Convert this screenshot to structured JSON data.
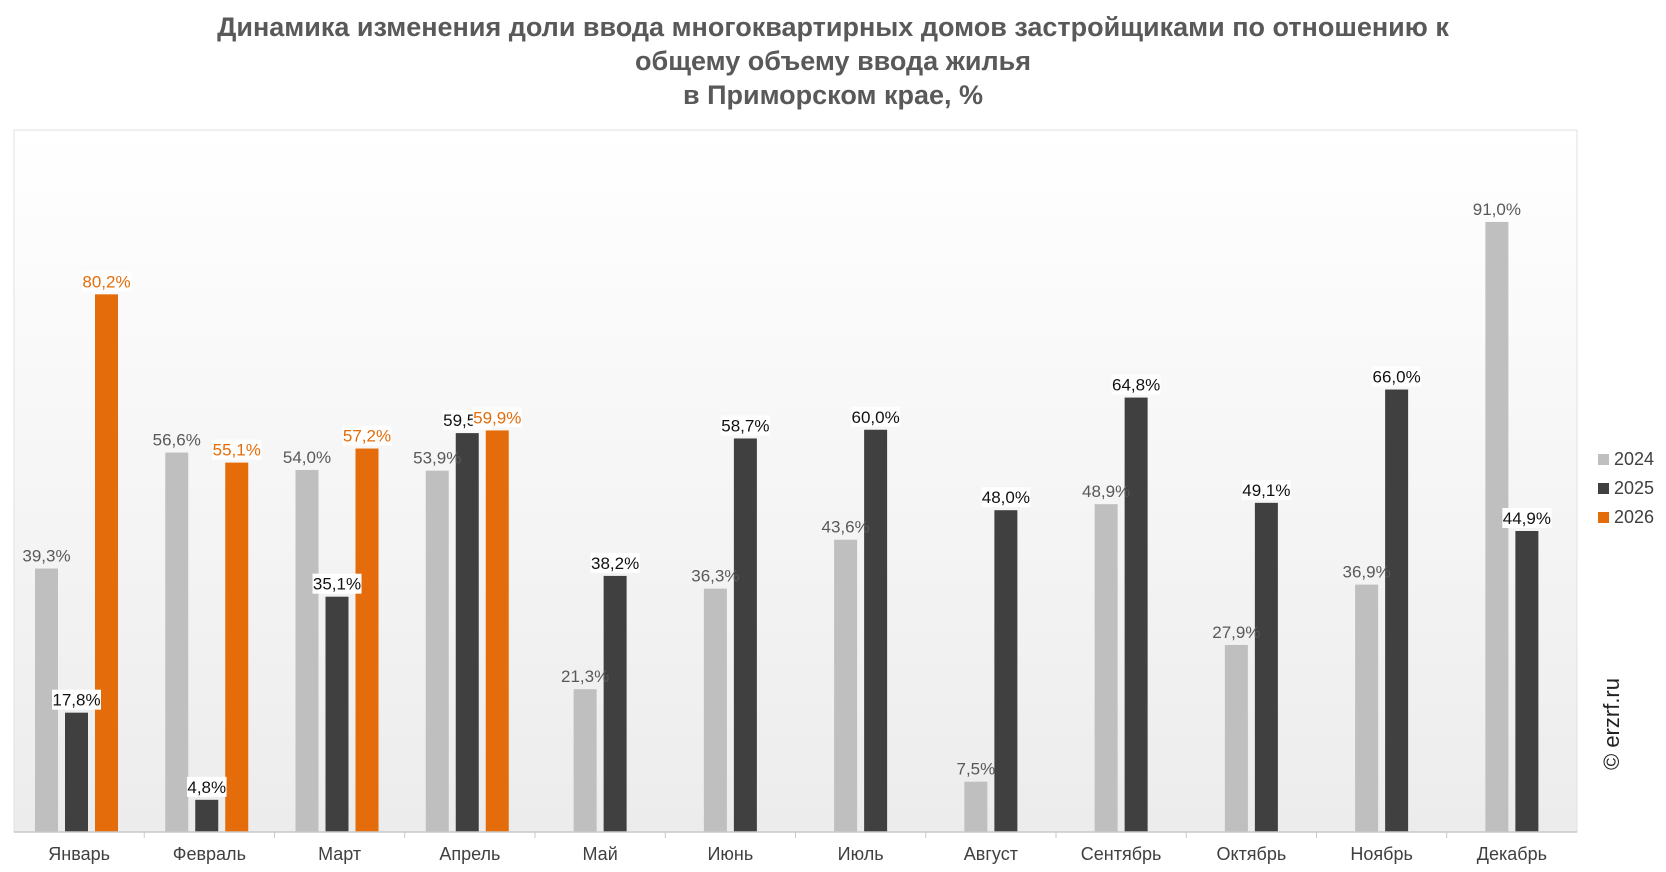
{
  "chart_data": {
    "type": "bar",
    "title_lines": [
      "Динамика изменения доли ввода многоквартирных домов застройщиками по отношению к",
      "общему объему ввода жилья",
      "в Приморском крае, %"
    ],
    "categories": [
      "Январь",
      "Февраль",
      "Март",
      "Апрель",
      "Май",
      "Июнь",
      "Июль",
      "Август",
      "Сентябрь",
      "Октябрь",
      "Ноябрь",
      "Декабрь"
    ],
    "series": [
      {
        "name": "2024",
        "color": "#bfbfbf",
        "label_color": "#595959",
        "values": [
          39.3,
          56.6,
          54.0,
          53.9,
          21.3,
          36.3,
          43.6,
          7.5,
          48.9,
          27.9,
          36.9,
          91.0
        ],
        "labels": [
          "39,3%",
          "56,6%",
          "54,0%",
          "53,9%",
          "21,3%",
          "36,3%",
          "43,6%",
          "7,5%",
          "48,9%",
          "27,9%",
          "36,9%",
          "91,0%"
        ]
      },
      {
        "name": "2025",
        "color": "#404040",
        "label_color": "#111111",
        "values": [
          17.8,
          4.8,
          35.1,
          59.5,
          38.2,
          58.7,
          60.0,
          48.0,
          64.8,
          49.1,
          66.0,
          44.9
        ],
        "labels": [
          "17,8%",
          "4,8%",
          "35,1%",
          "59,5%",
          "38,2%",
          "58,7%",
          "60,0%",
          "48,0%",
          "64,8%",
          "49,1%",
          "66,0%",
          "44,9%"
        ]
      },
      {
        "name": "2026",
        "color": "#e46c0a",
        "label_color": "#e46c0a",
        "values": [
          80.2,
          55.1,
          57.2,
          59.9,
          null,
          null,
          null,
          null,
          null,
          null,
          null,
          null
        ],
        "labels": [
          "80,2%",
          "55,1%",
          "57,2%",
          "59,9%",
          "",
          "",
          "",
          "",
          "",
          "",
          "",
          ""
        ]
      }
    ],
    "ylim": [
      0,
      100
    ],
    "grid": false,
    "legend_position": "right"
  },
  "watermark": "© erzrf.ru"
}
